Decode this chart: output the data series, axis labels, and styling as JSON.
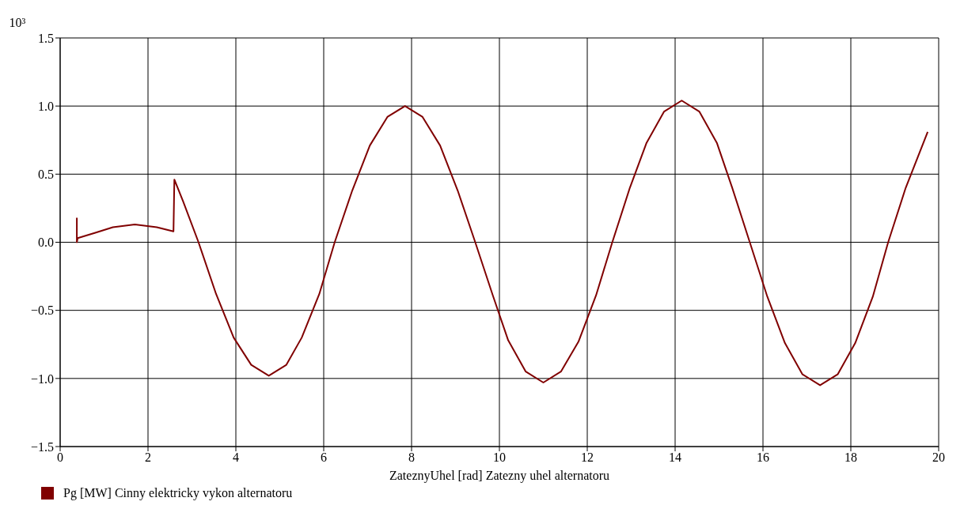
{
  "chart_data": {
    "type": "line",
    "xlabel": "ZateznyUhel [rad] Zatezny uhel alternatoru",
    "ylabel": "10³",
    "xlim": [
      0,
      20
    ],
    "xticks": [
      0,
      2,
      4,
      6,
      8,
      10,
      12,
      14,
      16,
      18,
      20
    ],
    "ylim": [
      -1.5,
      1.5
    ],
    "yticks": [
      {
        "value": -1.5,
        "label": "−1.5"
      },
      {
        "value": -1,
        "label": "−1.0"
      },
      {
        "value": -0.5,
        "label": "−0.5"
      },
      {
        "value": 0,
        "label": "0.0"
      },
      {
        "value": 0.5,
        "label": "0.5"
      },
      {
        "value": 1,
        "label": "1.0"
      },
      {
        "value": 1.5,
        "label": "1.5"
      }
    ],
    "grid": true,
    "legend": "bottom left",
    "marker": "none",
    "line_style": "solid",
    "series": [
      {
        "name": "Pg [MW] Cinny elektricky vykon alternatoru",
        "color": "#800000",
        "x": [
          0.38,
          0.38,
          0.4,
          0.8,
          1.2,
          1.7,
          2.2,
          2.58,
          2.6,
          2.8,
          3.15,
          3.55,
          3.95,
          4.35,
          4.75,
          5.15,
          5.5,
          5.9,
          6.25,
          6.65,
          7.05,
          7.45,
          7.85,
          8.25,
          8.65,
          9.05,
          9.45,
          9.85,
          10.2,
          10.6,
          11.0,
          11.4,
          11.8,
          12.2,
          12.57,
          12.97,
          13.35,
          13.75,
          14.15,
          14.55,
          14.95,
          15.3,
          15.7,
          16.1,
          16.5,
          16.9,
          17.3,
          17.7,
          18.1,
          18.5,
          18.85,
          19.25,
          19.75
        ],
        "values": [
          0.18,
          0.0,
          0.03,
          0.07,
          0.11,
          0.13,
          0.11,
          0.08,
          0.46,
          0.3,
          0.0,
          -0.38,
          -0.7,
          -0.9,
          -0.98,
          -0.9,
          -0.7,
          -0.38,
          0,
          0.38,
          0.71,
          0.92,
          1.0,
          0.92,
          0.71,
          0.38,
          0,
          -0.39,
          -0.72,
          -0.95,
          -1.03,
          -0.95,
          -0.73,
          -0.39,
          0,
          0.4,
          0.73,
          0.96,
          1.04,
          0.96,
          0.73,
          0.4,
          0,
          -0.4,
          -0.74,
          -0.97,
          -1.05,
          -0.97,
          -0.74,
          -0.4,
          0,
          0.4,
          0.81
        ]
      }
    ]
  }
}
